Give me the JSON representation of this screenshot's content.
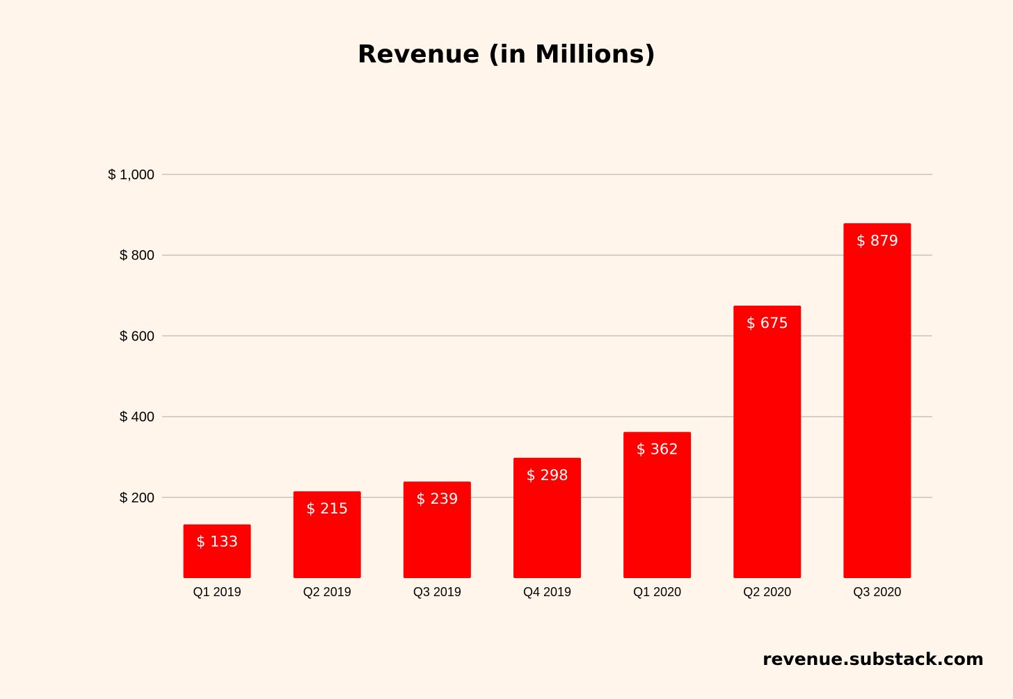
{
  "chart_data": {
    "type": "bar",
    "title": "Revenue (in Millions)",
    "xlabel": "",
    "ylabel": "",
    "categories": [
      "Q1 2019",
      "Q2 2019",
      "Q3 2019",
      "Q4 2019",
      "Q1 2020",
      "Q2 2020",
      "Q3 2020"
    ],
    "values": [
      133,
      215,
      239,
      298,
      362,
      675,
      879
    ],
    "data_labels": [
      "$ 133",
      "$ 215",
      "$ 239",
      "$ 298",
      "$ 362",
      "$ 675",
      "$ 879"
    ],
    "ylim": [
      0,
      1000
    ],
    "yticks": [
      200,
      400,
      600,
      800,
      1000
    ],
    "ytick_labels": [
      "$ 200",
      "$ 400",
      "$ 600",
      "$ 800",
      "$ 1,000"
    ],
    "grid": true,
    "legend": "none",
    "bar_color": "#ff0000",
    "gridline_color": "#c8c3bc",
    "background_color": "#fff5ea"
  },
  "watermark": "revenue.substack.com"
}
